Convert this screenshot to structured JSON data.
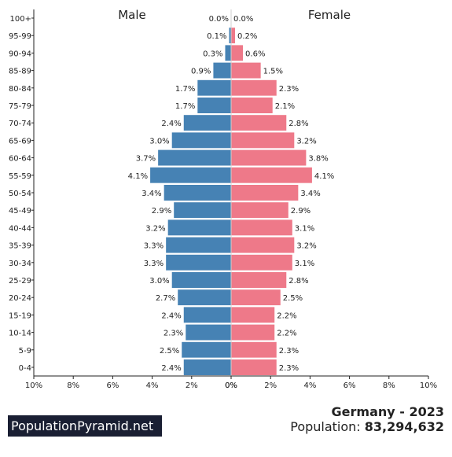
{
  "chart_data": {
    "type": "bar",
    "orientation": "horizontal-pyramid",
    "left_label": "Male",
    "right_label": "Female",
    "categories": [
      "100+",
      "95-99",
      "90-94",
      "85-89",
      "80-84",
      "75-79",
      "70-74",
      "65-69",
      "60-64",
      "55-59",
      "50-54",
      "45-49",
      "40-44",
      "35-39",
      "30-34",
      "25-29",
      "20-24",
      "15-19",
      "10-14",
      "5-9",
      "0-4"
    ],
    "series": [
      {
        "name": "Male",
        "color": "#4682b4",
        "values": [
          0.0,
          0.1,
          0.3,
          0.9,
          1.7,
          1.7,
          2.4,
          3.0,
          3.7,
          4.1,
          3.4,
          2.9,
          3.2,
          3.3,
          3.3,
          3.0,
          2.7,
          2.4,
          2.3,
          2.5,
          2.4
        ],
        "labels": [
          "0.0%",
          "0.1%",
          "0.3%",
          "0.9%",
          "1.7%",
          "1.7%",
          "2.4%",
          "3.0%",
          "3.7%",
          "4.1%",
          "3.4%",
          "2.9%",
          "3.2%",
          "3.3%",
          "3.3%",
          "3.0%",
          "2.7%",
          "2.4%",
          "2.3%",
          "2.5%",
          "2.4%"
        ]
      },
      {
        "name": "Female",
        "color": "#ee7989",
        "values": [
          0.0,
          0.2,
          0.6,
          1.5,
          2.3,
          2.1,
          2.8,
          3.2,
          3.8,
          4.1,
          3.4,
          2.9,
          3.1,
          3.2,
          3.1,
          2.8,
          2.5,
          2.2,
          2.2,
          2.3,
          2.3
        ],
        "labels": [
          "0.0%",
          "0.2%",
          "0.6%",
          "1.5%",
          "2.3%",
          "2.1%",
          "2.8%",
          "3.2%",
          "3.8%",
          "4.1%",
          "3.4%",
          "2.9%",
          "3.1%",
          "3.2%",
          "3.1%",
          "2.8%",
          "2.5%",
          "2.2%",
          "2.2%",
          "2.3%",
          "2.3%"
        ]
      }
    ],
    "xlim": [
      0,
      10
    ],
    "x_ticks_left": [
      "10%",
      "8%",
      "6%",
      "4%",
      "2%",
      "0%"
    ],
    "x_ticks_right": [
      "0%",
      "2%",
      "4%",
      "6%",
      "8%",
      "10%"
    ]
  },
  "footer": {
    "brand": "PopulationPyramid.net",
    "title": "Germany - 2023",
    "population_label": "Population:",
    "population_value": "83,294,632"
  }
}
